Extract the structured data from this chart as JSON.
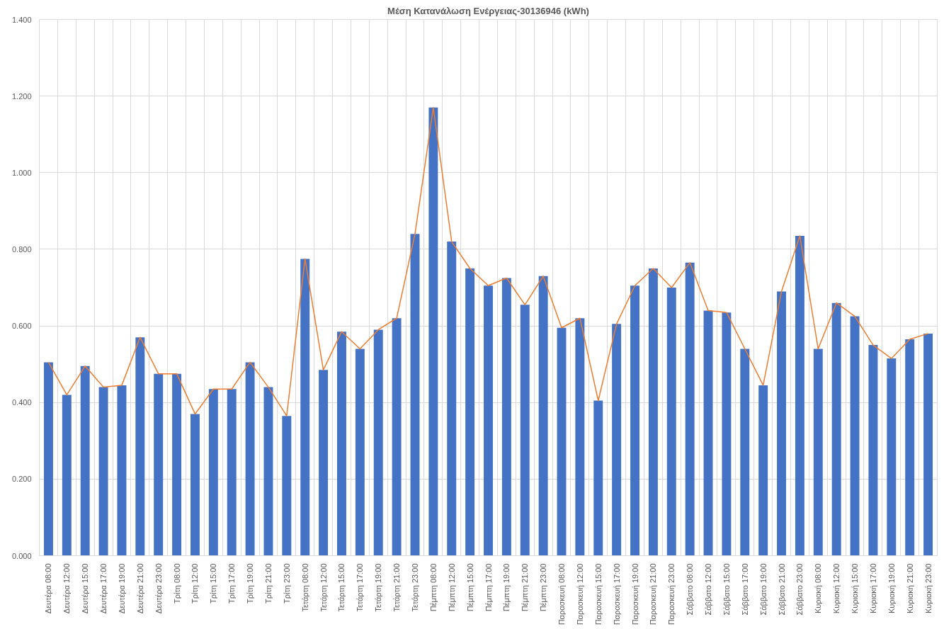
{
  "chart_data": {
    "type": "bar",
    "title": "Μέση Κατανάλωση Ενέργειας-30136946 (kWh)",
    "categories": [
      "Δευτέρα 08:00",
      "Δευτέρα 12:00",
      "Δευτέρα 15:00",
      "Δευτέρα 17:00",
      "Δευτέρα 19:00",
      "Δευτέρα 21:00",
      "Δευτέρα 23:00",
      "Τρίτη 08:00",
      "Τρίτη 12:00",
      "Τρίτη 15:00",
      "Τρίτη 17:00",
      "Τρίτη 19:00",
      "Τρίτη 21:00",
      "Τρίτη 23:00",
      "Τετάρτη 08:00",
      "Τετάρτη 12:00",
      "Τετάρτη 15:00",
      "Τετάρτη 17:00",
      "Τετάρτη 19:00",
      "Τετάρτη 21:00",
      "Τετάρτη 23:00",
      "Πέμπτη 08:00",
      "Πέμπτη 12:00",
      "Πέμπτη 15:00",
      "Πέμπτη 17:00",
      "Πέμπτη 19:00",
      "Πέμπτη 21:00",
      "Πέμπτη 23:00",
      "Παρασκευή 08:00",
      "Παρασκευή 12:00",
      "Παρασκευή 15:00",
      "Παρασκευή 17:00",
      "Παρασκευή 19:00",
      "Παρασκευή 21:00",
      "Παρασκευή 23:00",
      "Σάββατο 08:00",
      "Σάββατο 12:00",
      "Σάββατο 15:00",
      "Σάββατο 17:00",
      "Σάββατο 19:00",
      "Σάββατο 21:00",
      "Σάββατο 23:00",
      "Κυριακή 08:00",
      "Κυριακή 12:00",
      "Κυριακή 15:00",
      "Κυριακή 17:00",
      "Κυριακή 19:00",
      "Κυριακή 21:00",
      "Κυριακή 23:00"
    ],
    "series": [
      {
        "color": "#4472c4",
        "values": [
          0.505,
          0.42,
          0.495,
          0.44,
          0.445,
          0.57,
          0.475,
          0.475,
          0.37,
          0.435,
          0.435,
          0.505,
          0.44,
          0.365,
          0.775,
          0.485,
          0.585,
          0.54,
          0.59,
          0.62,
          0.84,
          1.17,
          0.82,
          0.75,
          0.705,
          0.725,
          0.655,
          0.73,
          0.595,
          0.62,
          0.405,
          0.605,
          0.705,
          0.75,
          0.7,
          0.765,
          0.64,
          0.635,
          0.54,
          0.445,
          0.69,
          0.835,
          0.54,
          0.66,
          0.625,
          0.55,
          0.515,
          0.565,
          0.58
        ]
      },
      {
        "type": "line",
        "color": "#ed7d31",
        "values": [
          0.505,
          0.42,
          0.495,
          0.44,
          0.445,
          0.57,
          0.475,
          0.475,
          0.37,
          0.435,
          0.435,
          0.505,
          0.44,
          0.365,
          0.775,
          0.485,
          0.585,
          0.54,
          0.59,
          0.62,
          0.84,
          1.17,
          0.82,
          0.75,
          0.705,
          0.725,
          0.655,
          0.73,
          0.595,
          0.62,
          0.405,
          0.605,
          0.705,
          0.75,
          0.7,
          0.765,
          0.64,
          0.635,
          0.54,
          0.445,
          0.69,
          0.835,
          0.54,
          0.66,
          0.625,
          0.55,
          0.515,
          0.565,
          0.58
        ]
      }
    ],
    "ylim": [
      0,
      1.4
    ],
    "yticks": [
      {
        "value": 0,
        "label": "0.000"
      },
      {
        "value": 0.2,
        "label": "0.200"
      },
      {
        "value": 0.4,
        "label": "0.400"
      },
      {
        "value": 0.6,
        "label": "0.600"
      },
      {
        "value": 0.8,
        "label": "0.800"
      },
      {
        "value": 1.0,
        "label": "1.000"
      },
      {
        "value": 1.2,
        "label": "1.200"
      },
      {
        "value": 1.4,
        "label": "1.400"
      }
    ],
    "grid": true
  }
}
